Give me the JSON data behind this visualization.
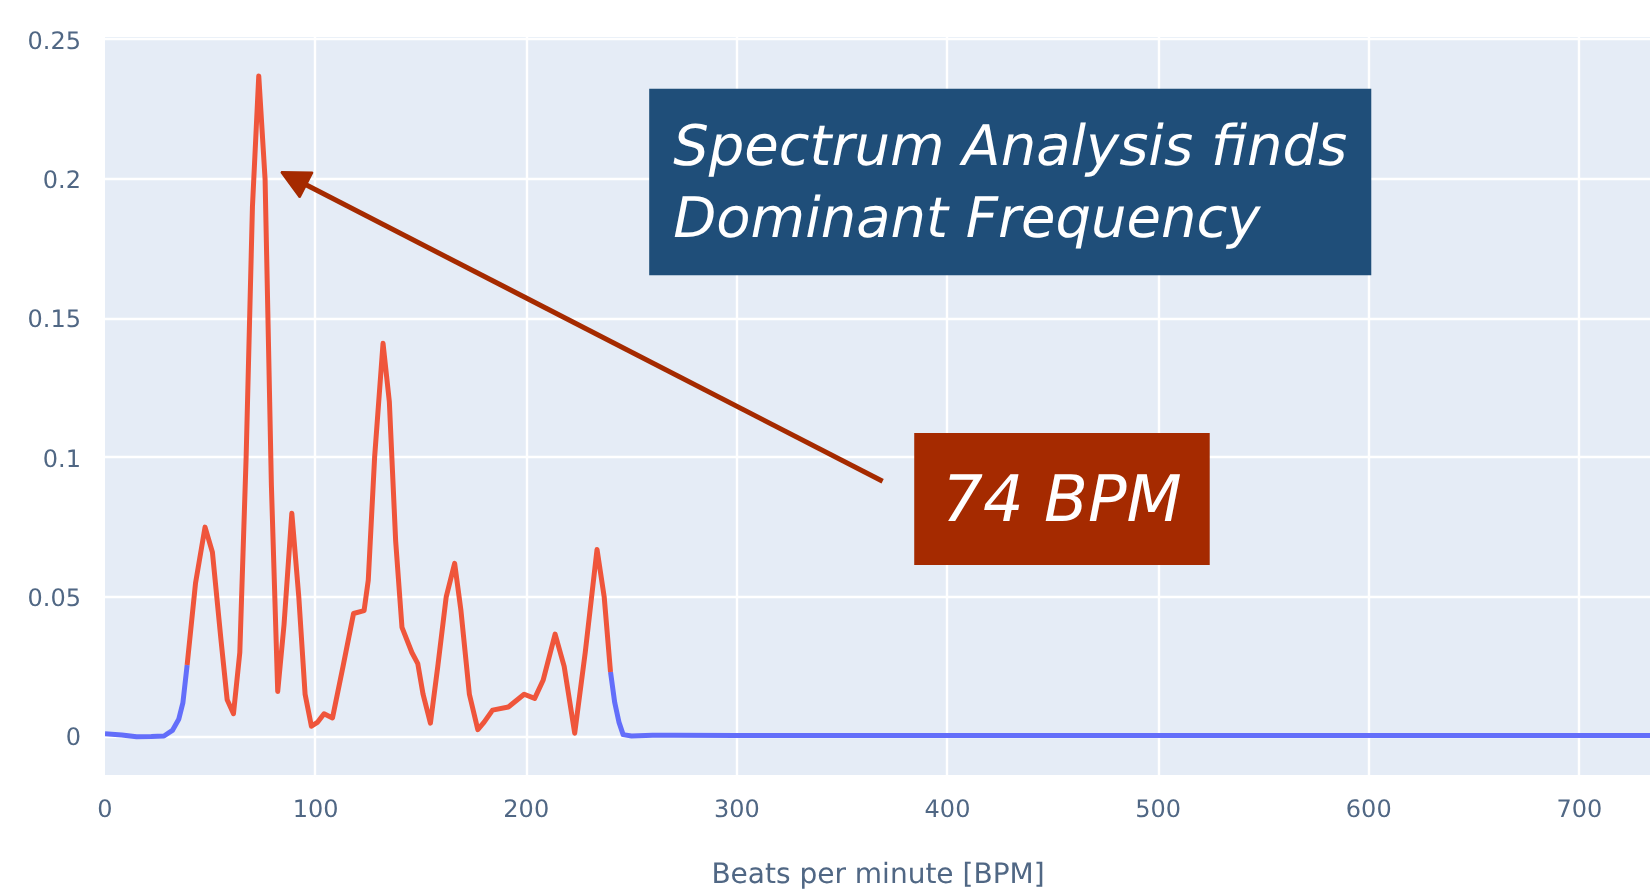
{
  "chart_data": {
    "type": "line",
    "xlabel": "Beats per minute [BPM]",
    "xlim": [
      0,
      734
    ],
    "ylim": [
      -0.014,
      0.251
    ],
    "xticks": [
      0,
      100,
      200,
      300,
      400,
      500,
      600,
      700
    ],
    "yticks": [
      0,
      0.05,
      0.1,
      0.15,
      0.2,
      0.25
    ],
    "grid": true,
    "line_style": "solid",
    "marker": "none",
    "series": [
      {
        "color": "#636efa",
        "x": [
          0,
          8,
          15,
          22,
          28,
          32,
          35,
          37,
          39,
          140,
          240,
          242,
          244,
          246,
          250,
          260,
          270,
          300,
          400,
          500,
          600,
          700,
          734
        ],
        "values": [
          0.0008,
          0.0004,
          -0.0003,
          -0.0002,
          0,
          0.002,
          0.006,
          0.012,
          0.0255,
          null,
          0.023,
          0.012,
          0.005,
          0.0005,
          0,
          0.0003,
          0.0003,
          0.0002,
          0.0002,
          0.0002,
          0.0002,
          0.0002,
          0.0002
        ]
      },
      {
        "color": "#ef553b",
        "x": [
          39,
          43,
          47.5,
          51,
          55,
          58,
          61,
          64,
          67,
          70,
          73,
          76,
          79,
          82,
          85,
          88.7,
          92,
          95,
          98,
          101,
          104,
          108,
          113,
          118,
          123,
          125,
          128,
          132,
          135,
          138,
          141,
          145.7,
          148.5,
          151,
          154.5,
          158,
          162,
          166,
          169,
          173,
          177,
          180,
          184,
          191.5,
          199,
          204,
          208,
          213.7,
          218,
          223,
          228,
          233.6,
          237,
          240
        ],
        "values": [
          0.0255,
          0.055,
          0.075,
          0.066,
          0.035,
          0.013,
          0.008,
          0.03,
          0.1,
          0.19,
          0.237,
          0.2,
          0.09,
          0.016,
          0.04,
          0.08,
          0.05,
          0.015,
          0.0035,
          0.005,
          0.008,
          0.0065,
          0.025,
          0.044,
          0.045,
          0.056,
          0.1,
          0.141,
          0.12,
          0.07,
          0.039,
          0.03,
          0.026,
          0.015,
          0.0046,
          0.025,
          0.05,
          0.062,
          0.045,
          0.015,
          0.0023,
          0.005,
          0.0093,
          0.0104,
          0.015,
          0.0135,
          0.02,
          0.0366,
          0.025,
          0.001,
          0.03,
          0.067,
          0.05,
          0.023
        ]
      }
    ],
    "annotations": [
      "Spectrum Analysis finds\nDominant Frequency",
      "74 BPM"
    ]
  }
}
